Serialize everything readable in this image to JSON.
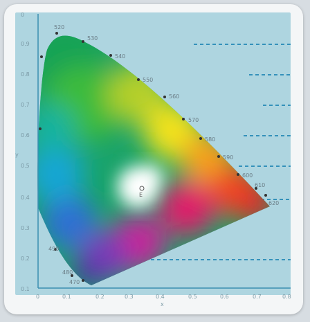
{
  "diagram": {
    "y_ticks": [
      "0.9",
      "0.8",
      "0.7",
      "0.6",
      "0.5",
      "0.4",
      "0.3",
      "0.2",
      "0.1",
      "0"
    ],
    "x_ticks": [
      "0",
      "0.1",
      "0.2",
      "0.3",
      "0.4",
      "0.5",
      "0.6",
      "0.7",
      "0.8"
    ],
    "y_axis_label": "y",
    "x_axis_label": "x",
    "white_point_label": "E",
    "wavelength_labels": {
      "nm_520": "520",
      "nm_530": "530",
      "nm_540": "540",
      "nm_550": "550",
      "nm_560": "560",
      "nm_570": "570",
      "nm_580": "580",
      "nm_590": "590",
      "nm_600": "600",
      "nm_610": "610",
      "nm_620": "620",
      "nm_490": "490",
      "nm_480": "480",
      "nm_470": "470"
    },
    "colors": {
      "background": "#aed5e0",
      "axis": "#3a8fb0",
      "grid_dash": "#1f86b4"
    }
  }
}
